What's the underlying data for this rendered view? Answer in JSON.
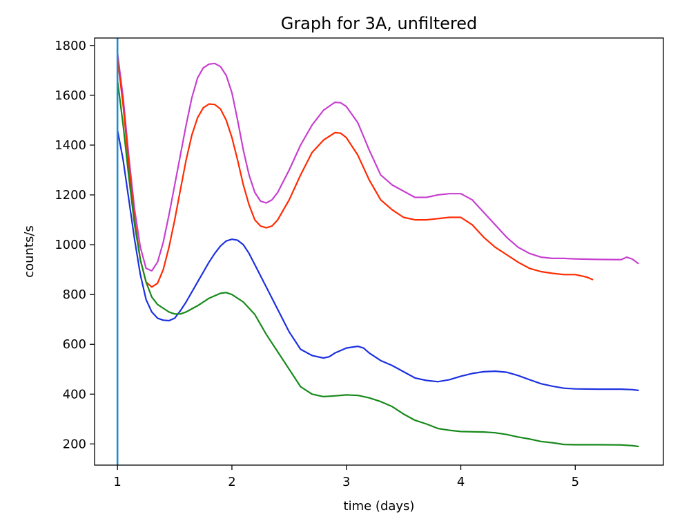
{
  "chart_data": {
    "type": "line",
    "title": "Graph for 3A, unfiltered",
    "xlabel": "time (days)",
    "ylabel": "counts/s",
    "xlim": [
      0.8,
      5.77
    ],
    "ylim": [
      115,
      1830
    ],
    "x_ticks": [
      1,
      2,
      3,
      4,
      5
    ],
    "y_ticks": [
      200,
      400,
      600,
      800,
      1000,
      1200,
      1400,
      1600,
      1800
    ],
    "grid": false,
    "vertical_line": {
      "x": 1.0,
      "color": "#1f8ad2"
    },
    "series": [
      {
        "color": "#c73fd0",
        "points": [
          [
            1.0,
            1770
          ],
          [
            1.05,
            1590
          ],
          [
            1.1,
            1350
          ],
          [
            1.15,
            1140
          ],
          [
            1.2,
            990
          ],
          [
            1.25,
            905
          ],
          [
            1.3,
            895
          ],
          [
            1.35,
            930
          ],
          [
            1.4,
            1010
          ],
          [
            1.45,
            1120
          ],
          [
            1.5,
            1240
          ],
          [
            1.55,
            1360
          ],
          [
            1.6,
            1480
          ],
          [
            1.65,
            1590
          ],
          [
            1.7,
            1670
          ],
          [
            1.75,
            1710
          ],
          [
            1.8,
            1725
          ],
          [
            1.85,
            1728
          ],
          [
            1.9,
            1715
          ],
          [
            1.95,
            1680
          ],
          [
            2.0,
            1610
          ],
          [
            2.05,
            1500
          ],
          [
            2.1,
            1380
          ],
          [
            2.15,
            1280
          ],
          [
            2.2,
            1210
          ],
          [
            2.25,
            1175
          ],
          [
            2.3,
            1168
          ],
          [
            2.35,
            1180
          ],
          [
            2.4,
            1210
          ],
          [
            2.5,
            1300
          ],
          [
            2.6,
            1400
          ],
          [
            2.7,
            1480
          ],
          [
            2.8,
            1540
          ],
          [
            2.9,
            1572
          ],
          [
            2.95,
            1570
          ],
          [
            3.0,
            1555
          ],
          [
            3.1,
            1490
          ],
          [
            3.2,
            1380
          ],
          [
            3.3,
            1280
          ],
          [
            3.4,
            1240
          ],
          [
            3.5,
            1215
          ],
          [
            3.6,
            1190
          ],
          [
            3.7,
            1190
          ],
          [
            3.8,
            1200
          ],
          [
            3.9,
            1205
          ],
          [
            4.0,
            1205
          ],
          [
            4.1,
            1180
          ],
          [
            4.2,
            1130
          ],
          [
            4.3,
            1080
          ],
          [
            4.4,
            1030
          ],
          [
            4.5,
            990
          ],
          [
            4.6,
            965
          ],
          [
            4.7,
            950
          ],
          [
            4.8,
            945
          ],
          [
            4.9,
            945
          ],
          [
            5.0,
            943
          ],
          [
            5.2,
            941
          ],
          [
            5.4,
            940
          ],
          [
            5.45,
            950
          ],
          [
            5.5,
            942
          ],
          [
            5.55,
            925
          ]
        ]
      },
      {
        "color": "#ff2a00",
        "points": [
          [
            1.0,
            1750
          ],
          [
            1.05,
            1560
          ],
          [
            1.1,
            1320
          ],
          [
            1.15,
            1100
          ],
          [
            1.2,
            940
          ],
          [
            1.25,
            850
          ],
          [
            1.3,
            830
          ],
          [
            1.35,
            845
          ],
          [
            1.4,
            900
          ],
          [
            1.45,
            990
          ],
          [
            1.5,
            1100
          ],
          [
            1.55,
            1220
          ],
          [
            1.6,
            1340
          ],
          [
            1.65,
            1440
          ],
          [
            1.7,
            1510
          ],
          [
            1.75,
            1550
          ],
          [
            1.8,
            1565
          ],
          [
            1.85,
            1563
          ],
          [
            1.9,
            1545
          ],
          [
            1.95,
            1500
          ],
          [
            2.0,
            1430
          ],
          [
            2.05,
            1340
          ],
          [
            2.1,
            1240
          ],
          [
            2.15,
            1160
          ],
          [
            2.2,
            1100
          ],
          [
            2.25,
            1075
          ],
          [
            2.3,
            1068
          ],
          [
            2.35,
            1075
          ],
          [
            2.4,
            1100
          ],
          [
            2.5,
            1180
          ],
          [
            2.6,
            1280
          ],
          [
            2.7,
            1370
          ],
          [
            2.8,
            1420
          ],
          [
            2.9,
            1450
          ],
          [
            2.95,
            1448
          ],
          [
            3.0,
            1430
          ],
          [
            3.1,
            1360
          ],
          [
            3.2,
            1260
          ],
          [
            3.3,
            1180
          ],
          [
            3.4,
            1140
          ],
          [
            3.5,
            1110
          ],
          [
            3.6,
            1100
          ],
          [
            3.7,
            1100
          ],
          [
            3.8,
            1105
          ],
          [
            3.9,
            1110
          ],
          [
            4.0,
            1110
          ],
          [
            4.1,
            1080
          ],
          [
            4.2,
            1030
          ],
          [
            4.3,
            990
          ],
          [
            4.4,
            960
          ],
          [
            4.5,
            930
          ],
          [
            4.6,
            905
          ],
          [
            4.7,
            892
          ],
          [
            4.8,
            885
          ],
          [
            4.9,
            880
          ],
          [
            5.0,
            880
          ],
          [
            5.1,
            870
          ],
          [
            5.15,
            860
          ]
        ]
      },
      {
        "color": "#1c30e0",
        "points": [
          [
            1.0,
            1460
          ],
          [
            1.05,
            1340
          ],
          [
            1.1,
            1180
          ],
          [
            1.15,
            1020
          ],
          [
            1.2,
            880
          ],
          [
            1.25,
            780
          ],
          [
            1.3,
            730
          ],
          [
            1.35,
            705
          ],
          [
            1.4,
            697
          ],
          [
            1.45,
            695
          ],
          [
            1.5,
            705
          ],
          [
            1.55,
            735
          ],
          [
            1.6,
            770
          ],
          [
            1.65,
            810
          ],
          [
            1.7,
            850
          ],
          [
            1.75,
            890
          ],
          [
            1.8,
            930
          ],
          [
            1.85,
            965
          ],
          [
            1.9,
            995
          ],
          [
            1.95,
            1015
          ],
          [
            2.0,
            1022
          ],
          [
            2.05,
            1018
          ],
          [
            2.1,
            1000
          ],
          [
            2.15,
            965
          ],
          [
            2.2,
            920
          ],
          [
            2.3,
            830
          ],
          [
            2.4,
            740
          ],
          [
            2.5,
            650
          ],
          [
            2.6,
            580
          ],
          [
            2.7,
            555
          ],
          [
            2.8,
            545
          ],
          [
            2.85,
            550
          ],
          [
            2.9,
            565
          ],
          [
            3.0,
            585
          ],
          [
            3.1,
            592
          ],
          [
            3.15,
            585
          ],
          [
            3.2,
            565
          ],
          [
            3.3,
            535
          ],
          [
            3.4,
            515
          ],
          [
            3.5,
            490
          ],
          [
            3.6,
            465
          ],
          [
            3.7,
            455
          ],
          [
            3.8,
            450
          ],
          [
            3.9,
            458
          ],
          [
            4.0,
            472
          ],
          [
            4.1,
            483
          ],
          [
            4.2,
            490
          ],
          [
            4.3,
            492
          ],
          [
            4.4,
            488
          ],
          [
            4.5,
            475
          ],
          [
            4.6,
            458
          ],
          [
            4.7,
            442
          ],
          [
            4.8,
            432
          ],
          [
            4.9,
            424
          ],
          [
            5.0,
            421
          ],
          [
            5.2,
            420
          ],
          [
            5.4,
            420
          ],
          [
            5.5,
            418
          ],
          [
            5.55,
            415
          ]
        ]
      },
      {
        "color": "#17891a",
        "points": [
          [
            1.0,
            1660
          ],
          [
            1.05,
            1480
          ],
          [
            1.1,
            1270
          ],
          [
            1.15,
            1080
          ],
          [
            1.2,
            940
          ],
          [
            1.25,
            850
          ],
          [
            1.3,
            790
          ],
          [
            1.35,
            760
          ],
          [
            1.4,
            745
          ],
          [
            1.45,
            730
          ],
          [
            1.5,
            722
          ],
          [
            1.55,
            722
          ],
          [
            1.6,
            730
          ],
          [
            1.7,
            755
          ],
          [
            1.8,
            785
          ],
          [
            1.9,
            805
          ],
          [
            1.95,
            808
          ],
          [
            2.0,
            800
          ],
          [
            2.1,
            770
          ],
          [
            2.2,
            720
          ],
          [
            2.3,
            640
          ],
          [
            2.4,
            570
          ],
          [
            2.5,
            500
          ],
          [
            2.6,
            430
          ],
          [
            2.7,
            400
          ],
          [
            2.8,
            390
          ],
          [
            2.9,
            393
          ],
          [
            3.0,
            397
          ],
          [
            3.1,
            395
          ],
          [
            3.2,
            385
          ],
          [
            3.3,
            370
          ],
          [
            3.4,
            350
          ],
          [
            3.5,
            320
          ],
          [
            3.6,
            295
          ],
          [
            3.7,
            280
          ],
          [
            3.8,
            262
          ],
          [
            3.9,
            255
          ],
          [
            4.0,
            250
          ],
          [
            4.2,
            248
          ],
          [
            4.3,
            245
          ],
          [
            4.4,
            238
          ],
          [
            4.5,
            228
          ],
          [
            4.6,
            220
          ],
          [
            4.7,
            210
          ],
          [
            4.8,
            205
          ],
          [
            4.9,
            198
          ],
          [
            5.0,
            197
          ],
          [
            5.2,
            197
          ],
          [
            5.4,
            196
          ],
          [
            5.5,
            193
          ],
          [
            5.55,
            190
          ]
        ]
      }
    ]
  }
}
